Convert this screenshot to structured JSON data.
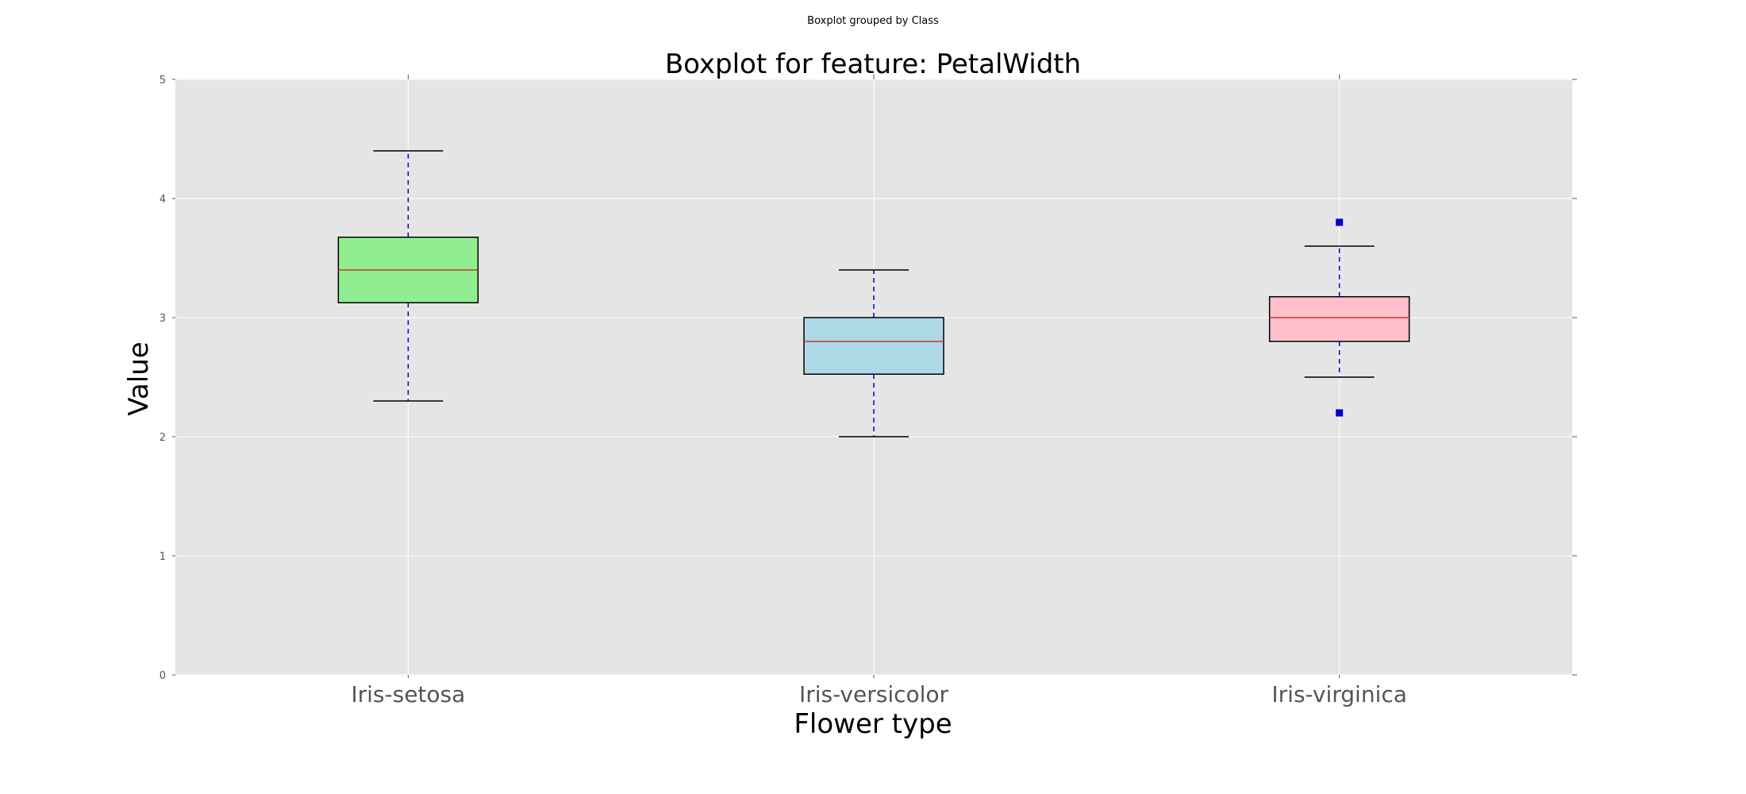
{
  "chart_data": {
    "type": "box",
    "suptitle": "Boxplot grouped by Class",
    "title": "Boxplot for feature: PetalWidth",
    "xlabel": "Flower type",
    "ylabel": "Value",
    "ylim": [
      0,
      5
    ],
    "yticks": [
      0,
      1,
      2,
      3,
      4,
      5
    ],
    "grid": true,
    "categories": [
      "Iris-setosa",
      "Iris-versicolor",
      "Iris-virginica"
    ],
    "boxes": [
      {
        "category": "Iris-setosa",
        "whisker_low": 2.3,
        "q1": 3.125,
        "median": 3.4,
        "q3": 3.675,
        "whisker_high": 4.4,
        "outliers": [],
        "fill": "#90EE90"
      },
      {
        "category": "Iris-versicolor",
        "whisker_low": 2.0,
        "q1": 2.525,
        "median": 2.8,
        "q3": 3.0,
        "whisker_high": 3.4,
        "outliers": [],
        "fill": "#ADD8E6"
      },
      {
        "category": "Iris-virginica",
        "whisker_low": 2.5,
        "q1": 2.8,
        "median": 3.0,
        "q3": 3.175,
        "whisker_high": 3.6,
        "outliers": [
          2.2,
          3.8
        ],
        "fill": "#FFC0CB"
      }
    ],
    "colors": {
      "axes_background": "#E5E5E5",
      "grid": "#FFFFFF",
      "median": "#CC3333",
      "whisker": "#0000CC",
      "cap": "#000000",
      "outlier": "#0000CC",
      "box_edge": "#000000"
    }
  }
}
